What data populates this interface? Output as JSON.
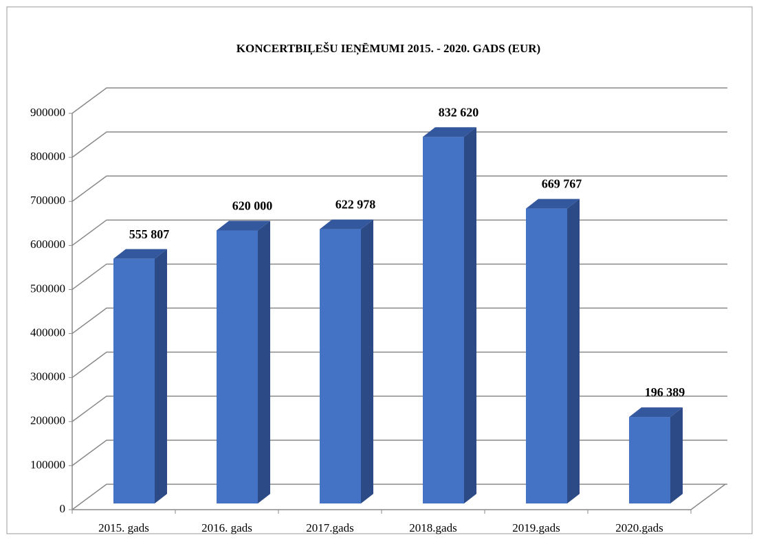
{
  "chart_data": {
    "type": "bar3d",
    "title": "KONCERTBIĻEŠU  IEŅĒMUMI  2015. - 2020. GADS (EUR)",
    "categories": [
      "2015. gads",
      "2016. gads",
      "2017.gads",
      "2018.gads",
      "2019.gads",
      "2020.gads"
    ],
    "values": [
      555807,
      620000,
      622978,
      832620,
      669767,
      196389
    ],
    "value_labels": [
      "555 807",
      "620 000",
      "622 978",
      "832 620",
      "669 767",
      "196 389"
    ],
    "color": "#4472c4",
    "ylim": [
      0,
      900000
    ],
    "yticks": [
      0,
      100000,
      200000,
      300000,
      400000,
      500000,
      600000,
      700000,
      800000,
      900000
    ],
    "grid": true
  }
}
